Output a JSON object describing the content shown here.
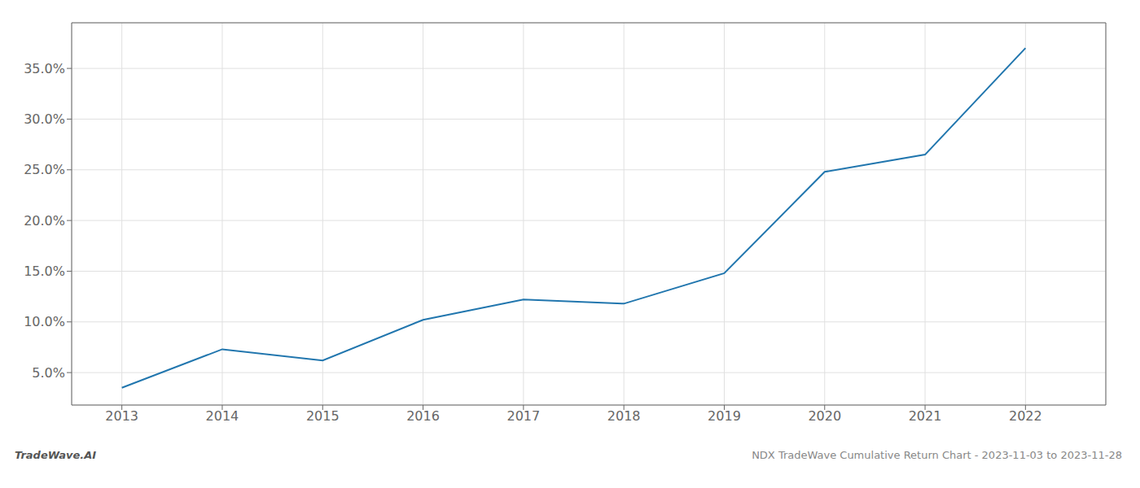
{
  "chart_data": {
    "type": "line",
    "x": [
      2013,
      2014,
      2015,
      2016,
      2017,
      2018,
      2019,
      2020,
      2021,
      2022
    ],
    "values": [
      0.035,
      0.073,
      0.062,
      0.102,
      0.122,
      0.118,
      0.148,
      0.248,
      0.265,
      0.37
    ],
    "color": "#2176ae",
    "xlim": [
      2012.5,
      2022.8
    ],
    "ylim": [
      0.018,
      0.395
    ],
    "xticks": [
      2013,
      2014,
      2015,
      2016,
      2017,
      2018,
      2019,
      2020,
      2021,
      2022
    ],
    "yticks": [
      {
        "value": 0.05,
        "label": "5.0%"
      },
      {
        "value": 0.1,
        "label": "10.0%"
      },
      {
        "value": 0.15,
        "label": "15.0%"
      },
      {
        "value": 0.2,
        "label": "20.0%"
      },
      {
        "value": 0.25,
        "label": "25.0%"
      },
      {
        "value": 0.3,
        "label": "30.0%"
      },
      {
        "value": 0.35,
        "label": "35.0%"
      }
    ],
    "grid": true,
    "annotations": [
      "TradeWave.AI",
      "NDX TradeWave Cumulative Return Chart - 2023-11-03 to 2023-11-28"
    ]
  }
}
